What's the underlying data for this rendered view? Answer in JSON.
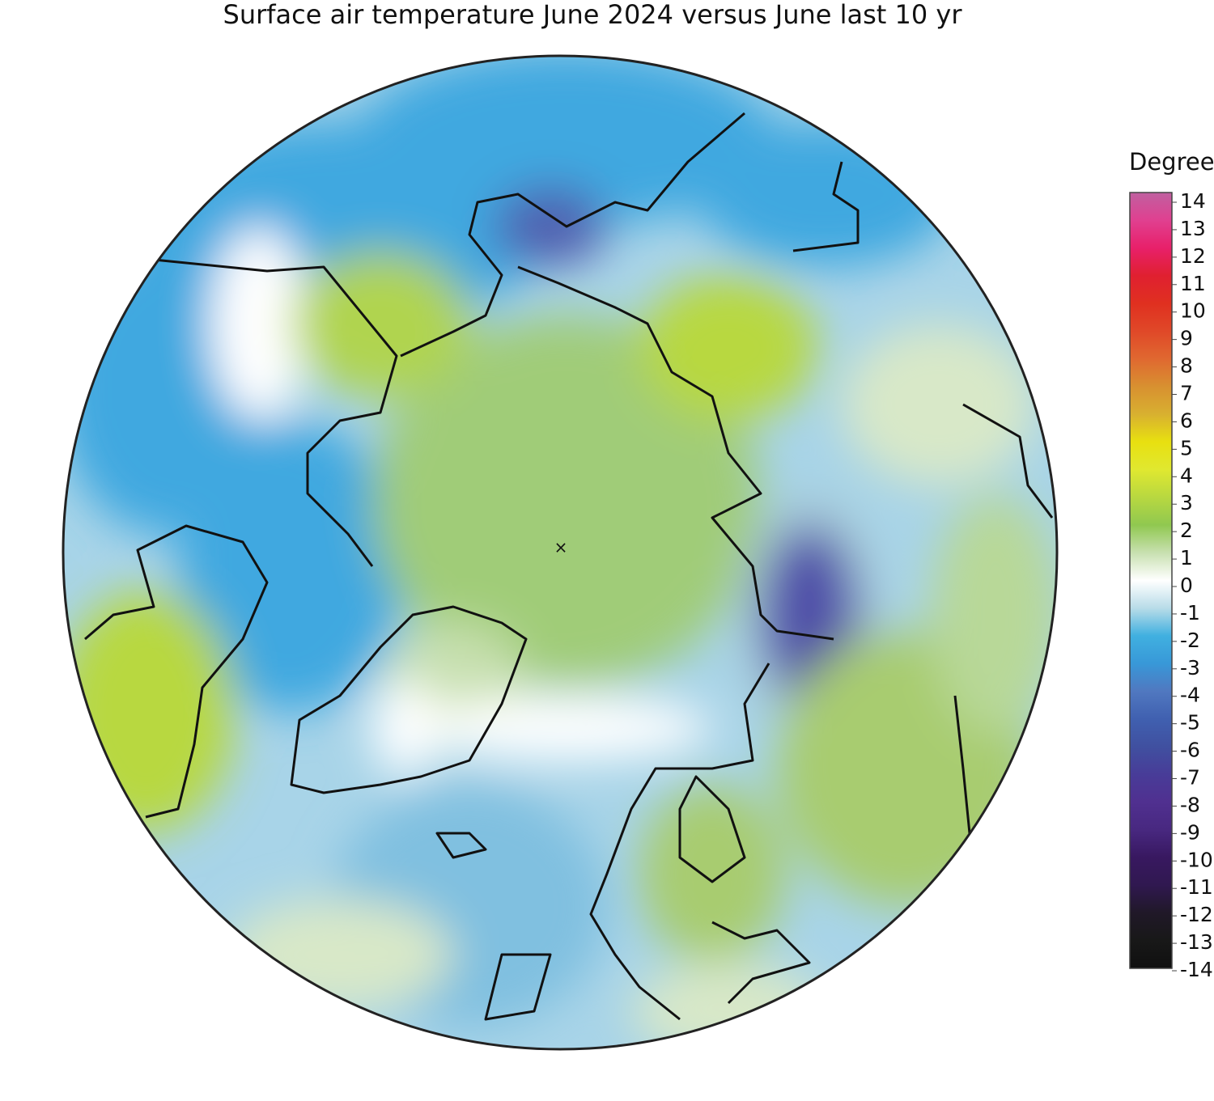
{
  "title": "Surface air temperature June 2024 versus June last 10 yr",
  "colorbar": {
    "label": "Degrees C",
    "ticks": [
      14,
      13,
      12,
      11,
      10,
      9,
      8,
      7,
      6,
      5,
      4,
      3,
      2,
      1,
      0,
      -1,
      -2,
      -3,
      -4,
      -5,
      -6,
      -7,
      -8,
      -9,
      -10,
      -11,
      -12,
      -13,
      -14
    ],
    "colors": [
      "#c060a0",
      "#e04090",
      "#e8206a",
      "#e02030",
      "#e03020",
      "#e04828",
      "#e06830",
      "#d89030",
      "#d8b030",
      "#e8e010",
      "#e0e830",
      "#b8d840",
      "#90c850",
      "#c8e0b0",
      "#ffffff",
      "#b8dce8",
      "#40b0e0",
      "#3898d8",
      "#5078c0",
      "#4060b0",
      "#4050a0",
      "#483c98",
      "#503090",
      "#482880",
      "#381860",
      "#301850",
      "#201828",
      "#181818",
      "#101010"
    ]
  }
}
